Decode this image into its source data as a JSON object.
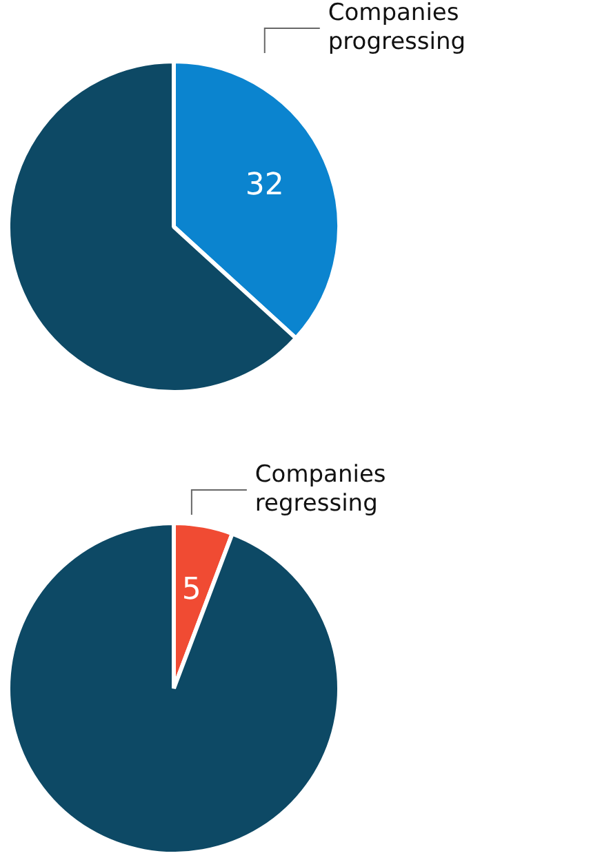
{
  "chart_data": [
    {
      "type": "pie",
      "categories": [
        "Companies progressing",
        null
      ],
      "values": [
        32,
        55
      ],
      "colors": [
        "#0b84cf",
        "#0d4965"
      ],
      "value_labels": [
        "32",
        null
      ]
    },
    {
      "type": "pie",
      "categories": [
        "Companies regressing",
        null
      ],
      "values": [
        5,
        82
      ],
      "colors": [
        "#f04b33",
        "#0d4965"
      ],
      "value_labels": [
        "5",
        null
      ]
    }
  ]
}
